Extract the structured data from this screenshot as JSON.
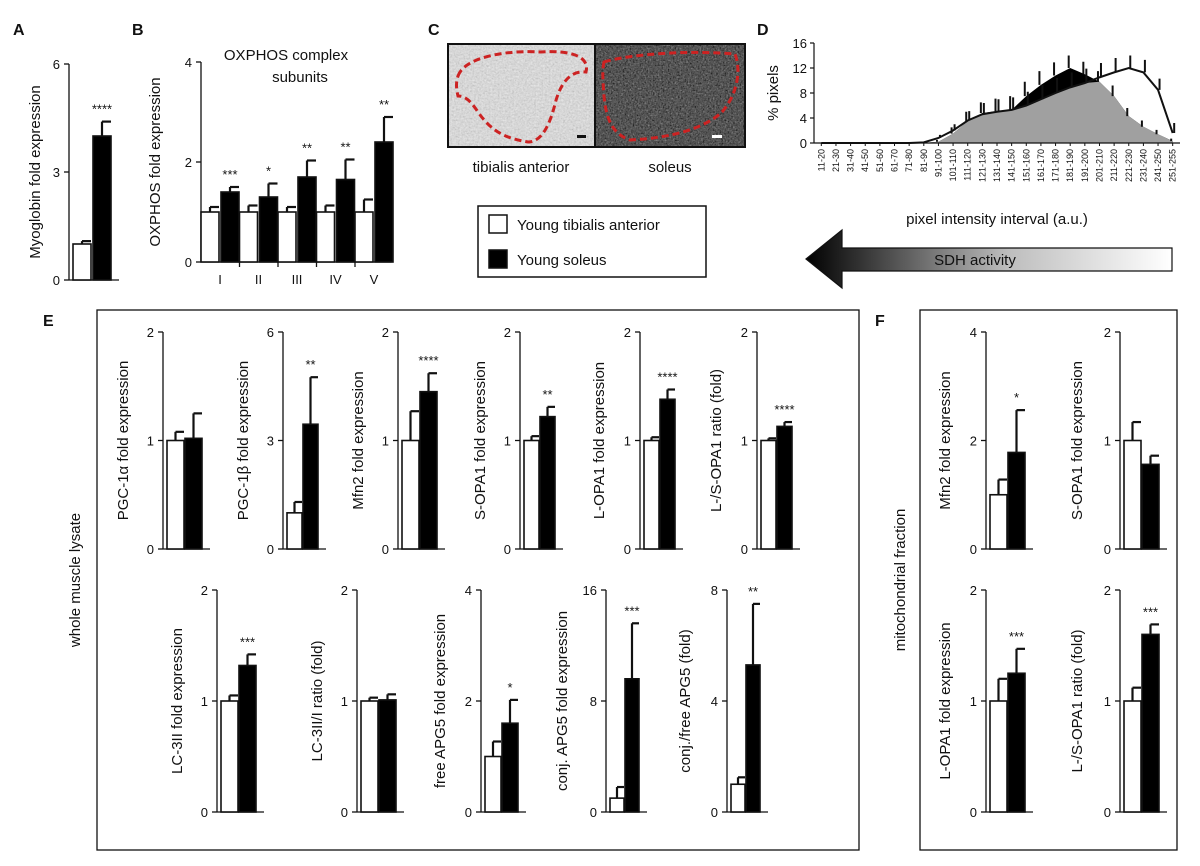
{
  "figure": {
    "panel_letters": [
      "A",
      "B",
      "C",
      "D",
      "E",
      "F"
    ],
    "legend": [
      {
        "label": "Young tibialis anterior",
        "fill": "#ffffff"
      },
      {
        "label": "Young soleus",
        "fill": "#000000"
      }
    ],
    "micrographs": {
      "tibialis_label": "tibialis anterior",
      "soleus_label": "soleus"
    },
    "sdh_arrow": {
      "label": "SDH activity"
    },
    "section_e_label": "whole muscle lysate",
    "section_f_label": "mitochondrial fraction",
    "colors": {
      "young_ta": "#ffffff",
      "young_soleus": "#000000",
      "hist_gray": "#a0a0a0",
      "roi_dashed": "#cc2222"
    }
  },
  "chart_data": [
    {
      "id": "A",
      "type": "bar",
      "ylabel": "Myoglobin fold expression",
      "ylim": [
        0,
        6
      ],
      "yticks": [
        0,
        3,
        6
      ],
      "categories": [
        ""
      ],
      "series": [
        {
          "values": [
            1
          ],
          "err": [
            0.08
          ]
        },
        {
          "values": [
            4
          ],
          "err": [
            0.4
          ]
        }
      ],
      "sig": [
        "****"
      ]
    },
    {
      "id": "B",
      "type": "bar",
      "title": "OXPHOS complex subunits",
      "ylabel": "OXPHOS fold expression",
      "ylim": [
        0,
        4
      ],
      "yticks": [
        0,
        2,
        4
      ],
      "categories": [
        "I",
        "II",
        "III",
        "IV",
        "V"
      ],
      "series": [
        {
          "values": [
            1,
            1,
            1,
            1,
            1
          ],
          "err": [
            0.1,
            0.13,
            0.1,
            0.13,
            0.25
          ]
        },
        {
          "values": [
            1.4,
            1.3,
            1.7,
            1.65,
            2.4
          ],
          "err": [
            0.1,
            0.27,
            0.33,
            0.4,
            0.5
          ]
        }
      ],
      "sig": [
        "***",
        "*",
        "**",
        "**",
        "**"
      ]
    },
    {
      "id": "D",
      "type": "area",
      "ylabel": "% pixels",
      "xlabel": "pixel intensity interval (a.u.)",
      "ylim": [
        0,
        16
      ],
      "yticks": [
        0,
        4,
        8,
        12,
        16
      ],
      "x": [
        "11-20",
        "21-30",
        "31-40",
        "41-50",
        "51-60",
        "61-70",
        "71-80",
        "81-90",
        "91-100",
        "101-110",
        "111-120",
        "121-130",
        "131-140",
        "141-150",
        "151-160",
        "161-170",
        "171-180",
        "181-190",
        "191-200",
        "201-210",
        "211-220",
        "221-230",
        "231-240",
        "241-250",
        "251-255"
      ],
      "series": [
        {
          "fill": "#ffffff",
          "values": [
            0,
            0,
            0,
            0,
            0,
            0,
            0,
            0.1,
            0.8,
            2,
            3.6,
            4.6,
            5,
            5.3,
            6,
            7,
            8,
            8.9,
            9.6,
            10.5,
            11.3,
            12,
            11.3,
            8.5,
            1.6
          ],
          "err": [
            0,
            0,
            0,
            0,
            0,
            0,
            0,
            0.1,
            0.5,
            1,
            1.5,
            1.8,
            2,
            2,
            2.2,
            2.3,
            2.4,
            2.4,
            2.3,
            2.3,
            2.3,
            2,
            2,
            1.8,
            1.6
          ]
        },
        {
          "fill": "#000000",
          "values": [
            0,
            0,
            0,
            0,
            0,
            0,
            0,
            0,
            0.2,
            1.5,
            3.5,
            4.8,
            5.1,
            5.3,
            7.5,
            9.3,
            10.8,
            12,
            11,
            9.8,
            7.5,
            4.3,
            2.6,
            1.4,
            0.3
          ],
          "err": [
            0,
            0,
            0,
            0,
            0,
            0,
            0,
            0,
            0.3,
            1,
            1.5,
            1.7,
            2,
            2.2,
            2.3,
            2.2,
            2.1,
            2,
            2,
            1.7,
            1.7,
            1.3,
            1,
            0.7,
            0.4
          ]
        }
      ]
    },
    {
      "id": "E1",
      "type": "bar",
      "ylabel": "PGC-1α fold expression",
      "ylim": [
        0,
        2
      ],
      "yticks": [
        0,
        1,
        2
      ],
      "categories": [
        ""
      ],
      "series": [
        {
          "values": [
            1
          ],
          "err": [
            0.08
          ]
        },
        {
          "values": [
            1.02
          ],
          "err": [
            0.23
          ]
        }
      ],
      "sig": [
        ""
      ]
    },
    {
      "id": "E2",
      "type": "bar",
      "ylabel": "PGC-1β fold expression",
      "ylim": [
        0,
        6
      ],
      "yticks": [
        0,
        3,
        6
      ],
      "categories": [
        ""
      ],
      "series": [
        {
          "values": [
            1
          ],
          "err": [
            0.3
          ]
        },
        {
          "values": [
            3.45
          ],
          "err": [
            1.3
          ]
        }
      ],
      "sig": [
        "**"
      ]
    },
    {
      "id": "E3",
      "type": "bar",
      "ylabel": "Mfn2 fold expression",
      "ylim": [
        0,
        2
      ],
      "yticks": [
        0,
        1,
        2
      ],
      "categories": [
        ""
      ],
      "series": [
        {
          "values": [
            1
          ],
          "err": [
            0.27
          ]
        },
        {
          "values": [
            1.45
          ],
          "err": [
            0.17
          ]
        }
      ],
      "sig": [
        "****"
      ]
    },
    {
      "id": "E4",
      "type": "bar",
      "ylabel": "S-OPA1 fold expression",
      "ylim": [
        0,
        2
      ],
      "yticks": [
        0,
        1,
        2
      ],
      "categories": [
        ""
      ],
      "series": [
        {
          "values": [
            1
          ],
          "err": [
            0.04
          ]
        },
        {
          "values": [
            1.22
          ],
          "err": [
            0.09
          ]
        }
      ],
      "sig": [
        "**"
      ]
    },
    {
      "id": "E5",
      "type": "bar",
      "ylabel": "L-OPA1 fold expression",
      "ylim": [
        0,
        2
      ],
      "yticks": [
        0,
        1,
        2
      ],
      "categories": [
        ""
      ],
      "series": [
        {
          "values": [
            1
          ],
          "err": [
            0.03
          ]
        },
        {
          "values": [
            1.38
          ],
          "err": [
            0.09
          ]
        }
      ],
      "sig": [
        "****"
      ]
    },
    {
      "id": "E6",
      "type": "bar",
      "ylabel": "L-/S-OPA1 ratio (fold)",
      "ylim": [
        0,
        2
      ],
      "yticks": [
        0,
        1,
        2
      ],
      "categories": [
        ""
      ],
      "series": [
        {
          "values": [
            1
          ],
          "err": [
            0.02
          ]
        },
        {
          "values": [
            1.13
          ],
          "err": [
            0.04
          ]
        }
      ],
      "sig": [
        "****"
      ]
    },
    {
      "id": "E7",
      "type": "bar",
      "ylabel": "LC-3II fold expression",
      "ylim": [
        0,
        2
      ],
      "yticks": [
        0,
        1,
        2
      ],
      "categories": [
        ""
      ],
      "series": [
        {
          "values": [
            1
          ],
          "err": [
            0.05
          ]
        },
        {
          "values": [
            1.32
          ],
          "err": [
            0.1
          ]
        }
      ],
      "sig": [
        "***"
      ]
    },
    {
      "id": "E8",
      "type": "bar",
      "ylabel": "LC-3II/I ratio (fold)",
      "ylim": [
        0,
        2
      ],
      "yticks": [
        0,
        1,
        2
      ],
      "categories": [
        ""
      ],
      "series": [
        {
          "values": [
            1
          ],
          "err": [
            0.03
          ]
        },
        {
          "values": [
            1.01
          ],
          "err": [
            0.05
          ]
        }
      ],
      "sig": [
        ""
      ]
    },
    {
      "id": "E9",
      "type": "bar",
      "ylabel": "free APG5 fold expression",
      "ylim": [
        0,
        4
      ],
      "yticks": [
        0,
        2,
        4
      ],
      "categories": [
        ""
      ],
      "series": [
        {
          "values": [
            1
          ],
          "err": [
            0.27
          ]
        },
        {
          "values": [
            1.6
          ],
          "err": [
            0.42
          ]
        }
      ],
      "sig": [
        "*"
      ]
    },
    {
      "id": "E10",
      "type": "bar",
      "ylabel": "conj. APG5 fold expression",
      "ylim": [
        0,
        16
      ],
      "yticks": [
        0,
        8,
        16
      ],
      "categories": [
        ""
      ],
      "series": [
        {
          "values": [
            1
          ],
          "err": [
            0.8
          ]
        },
        {
          "values": [
            9.6
          ],
          "err": [
            4.0
          ]
        }
      ],
      "sig": [
        "***"
      ]
    },
    {
      "id": "E11",
      "type": "bar",
      "ylabel": "conj./free APG5 (fold)",
      "ylim": [
        0,
        8
      ],
      "yticks": [
        0,
        4,
        8
      ],
      "categories": [
        ""
      ],
      "series": [
        {
          "values": [
            1
          ],
          "err": [
            0.25
          ]
        },
        {
          "values": [
            5.3
          ],
          "err": [
            2.2
          ]
        }
      ],
      "sig": [
        "**"
      ]
    },
    {
      "id": "F1",
      "type": "bar",
      "ylabel": "Mfn2 fold expression",
      "ylim": [
        0,
        4
      ],
      "yticks": [
        0,
        2,
        4
      ],
      "categories": [
        ""
      ],
      "series": [
        {
          "values": [
            1
          ],
          "err": [
            0.28
          ]
        },
        {
          "values": [
            1.78
          ],
          "err": [
            0.78
          ]
        }
      ],
      "sig": [
        "*"
      ]
    },
    {
      "id": "F2",
      "type": "bar",
      "ylabel": "S-OPA1 fold expression",
      "ylim": [
        0,
        2
      ],
      "yticks": [
        0,
        1,
        2
      ],
      "categories": [
        ""
      ],
      "series": [
        {
          "values": [
            1
          ],
          "err": [
            0.17
          ]
        },
        {
          "values": [
            0.78
          ],
          "err": [
            0.08
          ]
        }
      ],
      "sig": [
        ""
      ]
    },
    {
      "id": "F3",
      "type": "bar",
      "ylabel": "L-OPA1 fold expression",
      "ylim": [
        0,
        2
      ],
      "yticks": [
        0,
        1,
        2
      ],
      "categories": [
        ""
      ],
      "series": [
        {
          "values": [
            1
          ],
          "err": [
            0.2
          ]
        },
        {
          "values": [
            1.25
          ],
          "err": [
            0.22
          ]
        }
      ],
      "sig": [
        "***"
      ]
    },
    {
      "id": "F4",
      "type": "bar",
      "ylabel": "L-/S-OPA1 ratio (fold)",
      "ylim": [
        0,
        2
      ],
      "yticks": [
        0,
        1,
        2
      ],
      "categories": [
        ""
      ],
      "series": [
        {
          "values": [
            1
          ],
          "err": [
            0.12
          ]
        },
        {
          "values": [
            1.6
          ],
          "err": [
            0.09
          ]
        }
      ],
      "sig": [
        "***"
      ]
    }
  ]
}
